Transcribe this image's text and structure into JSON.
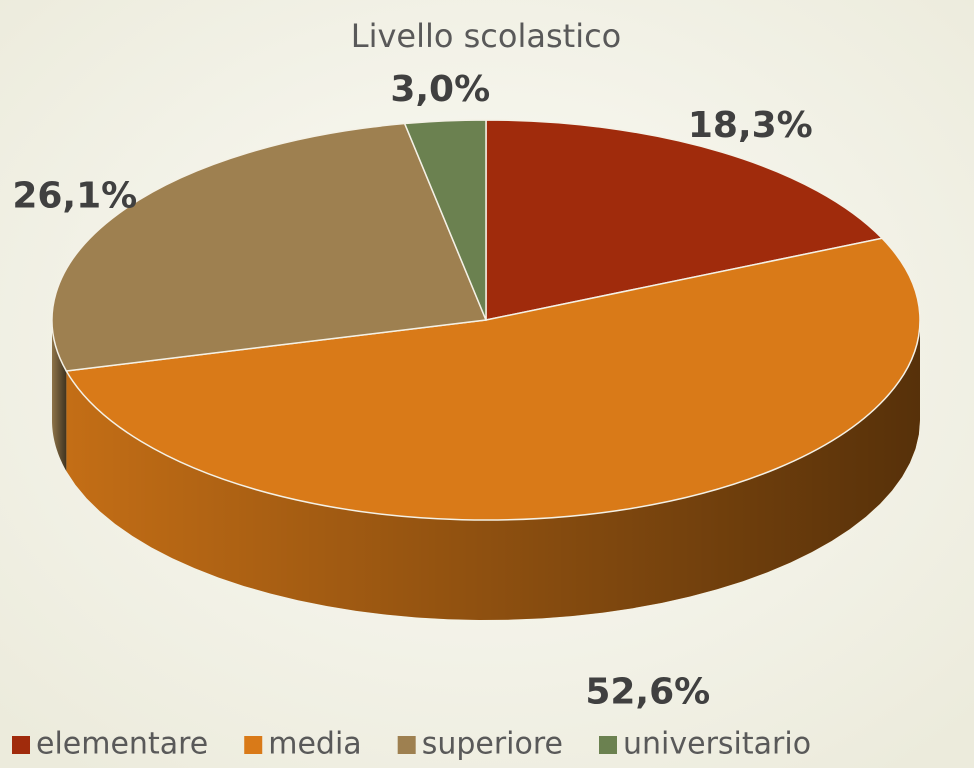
{
  "chart_data": {
    "type": "pie",
    "title": "Livello scolastico",
    "categories": [
      "elementare",
      "media",
      "superiore",
      "universitario"
    ],
    "values": [
      18.3,
      52.6,
      26.1,
      3.0
    ],
    "value_labels": [
      "18,3%",
      "52,6%",
      "26,1%",
      "3,0%"
    ],
    "colors": [
      "#a02b0c",
      "#d97a18",
      "#9e8050",
      "#6b8150"
    ],
    "legend": "bottom"
  }
}
